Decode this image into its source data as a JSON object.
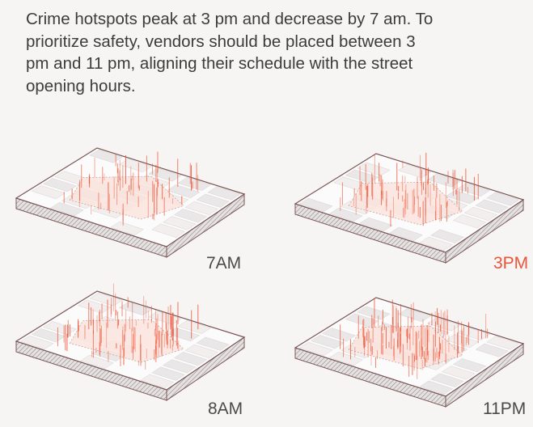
{
  "caption": {
    "lines": [
      "Crime hotspots peak at 3 pm and decrease by 7 am. To",
      "prioritize safety, vendors should be placed between 3",
      "pm and 11 pm, aligning their schedule with the street",
      "opening hours."
    ]
  },
  "panels": [
    {
      "label": "7AM",
      "label_color": "#4a4a4a"
    },
    {
      "label": "3PM",
      "label_color": "#e8553a"
    },
    {
      "label": "8AM",
      "label_color": "#4a4a4a"
    },
    {
      "label": "11PM",
      "label_color": "#4a4a4a"
    }
  ]
}
